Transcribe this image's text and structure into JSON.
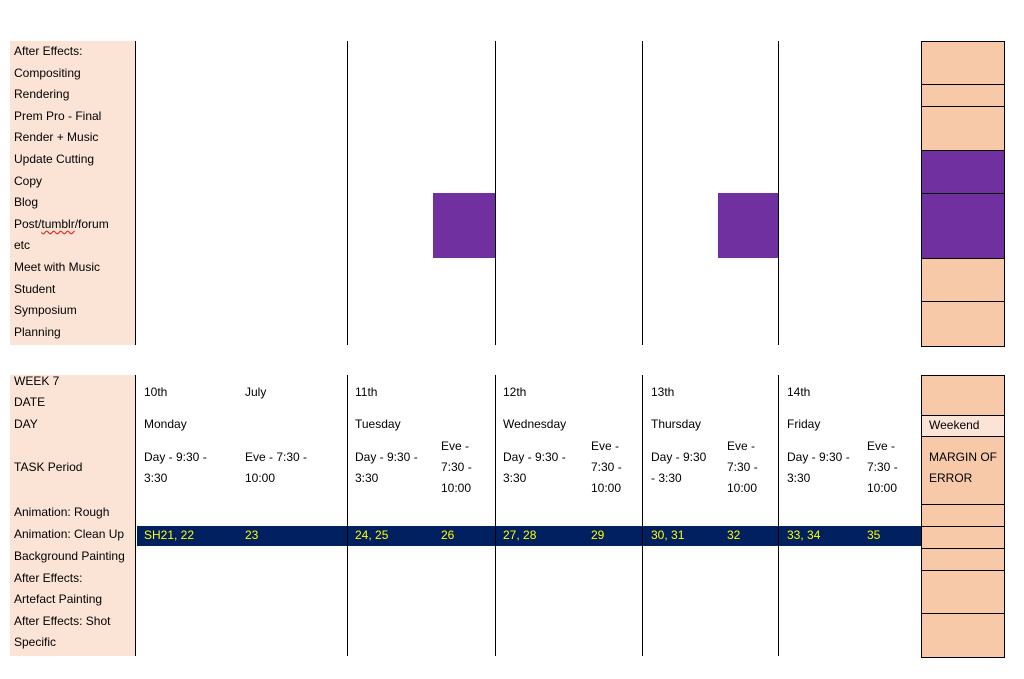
{
  "top_tasks": [
    "After Effects:",
    "Compositing",
    "Rendering",
    "Prem Pro - Final",
    "Render + Music",
    "Update Cutting",
    "Copy",
    "Blog",
    "Post/",
    "tumblr",
    "/forum",
    "etc",
    "Meet with Music",
    "Student",
    "Symposium",
    "Planning"
  ],
  "week": {
    "label": "WEEK 7",
    "date_label": "DATE",
    "day_label": "DAY",
    "task_period_label": "TASK Period",
    "month": "July",
    "weekend": "Weekend",
    "margin": "MARGIN OF ERROR",
    "days": [
      {
        "date": "10th",
        "day": "Monday",
        "day_period": "Day - 9:30 - 3:30",
        "eve_period": "Eve - 7:30 - 10:00"
      },
      {
        "date": "11th",
        "day": "Tuesday",
        "day_period": "Day - 9:30 - 3:30",
        "eve_period": "Eve - 7:30 - 10:00"
      },
      {
        "date": "12th",
        "day": "Wednesday",
        "day_period": "Day - 9:30 - 3:30",
        "eve_period": "Eve - 7:30 - 10:00"
      },
      {
        "date": "13th",
        "day": "Thursday",
        "day_period": "Day - 9:30 - 3:30",
        "eve_period": "Eve - 7:30 - 10:00"
      },
      {
        "date": "14th",
        "day": "Friday",
        "day_period": "Day - 9:30 - 3:30",
        "eve_period": "Eve - 7:30 - 10:00"
      }
    ]
  },
  "bottom_tasks": [
    "Animation: Rough",
    "Animation: Clean Up",
    "Background Painting",
    "After Effects:",
    "Artefact Painting",
    "After Effects: Shot",
    "Specific"
  ],
  "cleanup_shots": [
    "SH21, 22",
    "23",
    "24, 25",
    "26",
    "27, 28",
    "29",
    "30, 31",
    "32",
    "33, 34",
    "35"
  ],
  "colors": {
    "label_bg": "#fbe3d6",
    "margin_bg": "#f7c9a8",
    "highlight_purple": "#7030a0",
    "cleanup_bar": "#002060",
    "cleanup_text": "#ffff00"
  }
}
